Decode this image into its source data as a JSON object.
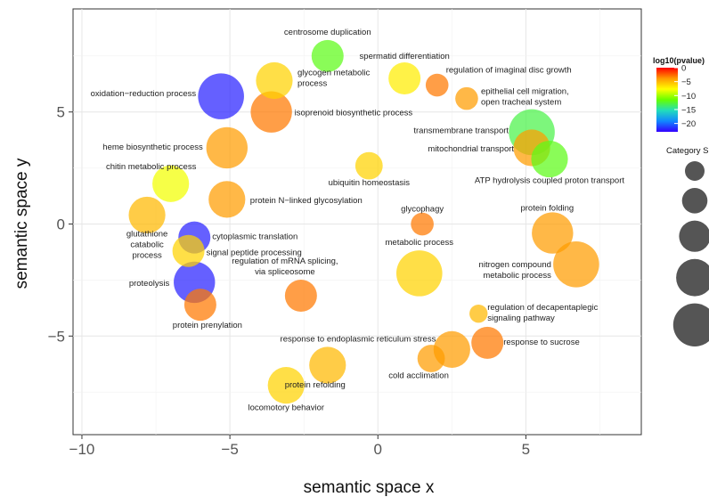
{
  "chart_data": {
    "type": "scatter",
    "xlabel": "semantic space x",
    "ylabel": "semantic space y",
    "xlim": [
      -10.3,
      8.9
    ],
    "ylim": [
      -9.4,
      9.6
    ],
    "x_ticks": [
      -10,
      -5,
      0,
      5
    ],
    "x_tick_labels": [
      "−10",
      "−5",
      "0",
      "5"
    ],
    "y_ticks": [
      -5,
      0,
      5
    ],
    "y_tick_labels": [
      "−5",
      "0",
      "5"
    ],
    "grid": true,
    "color_legend": {
      "title": "log10(pvalue)",
      "range": [
        -23,
        0
      ],
      "ticks": [
        0,
        -5,
        -10,
        -15,
        -20
      ],
      "tick_labels": [
        "0",
        "−5",
        "−10",
        "−15",
        "−20"
      ],
      "colors": [
        "#ff0000",
        "#ff9900",
        "#ffff00",
        "#66ff00",
        "#22ddbb",
        "#1188ff",
        "#3300ff"
      ]
    },
    "size_legend": {
      "title": "Category S",
      "count": 5,
      "position": "right"
    },
    "points": [
      {
        "term": "centrosome duplication",
        "x": -1.7,
        "y": 7.5,
        "size": 2.5,
        "log10p": -12
      },
      {
        "term": "spermatid differentiation",
        "x": 0.9,
        "y": 6.5,
        "size": 2.5,
        "log10p": -7
      },
      {
        "term": "regulation of imaginal disc growth",
        "x": 2.0,
        "y": 6.2,
        "size": 1.5,
        "log10p": -3
      },
      {
        "term": "glycogen metabolic\nprocess",
        "x": -3.5,
        "y": 6.4,
        "size": 3,
        "log10p": -6
      },
      {
        "term": "oxidation−reduction process",
        "x": -5.3,
        "y": 5.7,
        "size": 4,
        "log10p": -22
      },
      {
        "term": "isoprenoid biosynthetic process",
        "x": -3.6,
        "y": 5.0,
        "size": 3.5,
        "log10p": -3
      },
      {
        "term": "epithelial cell migration,\nopen tracheal system",
        "x": 3.0,
        "y": 5.6,
        "size": 1.5,
        "log10p": -4
      },
      {
        "term": "transmembrane transport",
        "x": 5.2,
        "y": 4.1,
        "size": 4,
        "log10p": -13
      },
      {
        "term": "mitochondrial transport",
        "x": 5.2,
        "y": 3.4,
        "size": 3,
        "log10p": -4
      },
      {
        "term": "ATP hydrolysis coupled proton transport",
        "x": 5.8,
        "y": 2.9,
        "size": 3,
        "log10p": -12
      },
      {
        "term": "heme biosynthetic process",
        "x": -5.1,
        "y": 3.4,
        "size": 3.5,
        "log10p": -4
      },
      {
        "term": "chitin metabolic process",
        "x": -7.0,
        "y": 1.8,
        "size": 3,
        "log10p": -8
      },
      {
        "term": "ubiquitin homeostasis",
        "x": -0.3,
        "y": 2.6,
        "size": 2,
        "log10p": -6
      },
      {
        "term": "protein N−linked glycosylation",
        "x": -5.1,
        "y": 1.1,
        "size": 3,
        "log10p": -4
      },
      {
        "term": "glutathione\ncatabolic\nprocess",
        "x": -7.8,
        "y": 0.4,
        "size": 3,
        "log10p": -5
      },
      {
        "term": "glycophagy",
        "x": 1.5,
        "y": 0.0,
        "size": 1.5,
        "log10p": -3
      },
      {
        "term": "protein folding",
        "x": 5.9,
        "y": -0.4,
        "size": 3.5,
        "log10p": -4
      },
      {
        "term": "cytoplasmic translation",
        "x": -6.2,
        "y": -0.6,
        "size": 2.5,
        "log10p": -22
      },
      {
        "term": "signal peptide processing",
        "x": -6.4,
        "y": -1.2,
        "size": 2.5,
        "log10p": -6
      },
      {
        "term": "metabolic process",
        "x": 1.4,
        "y": -2.2,
        "size": 4,
        "log10p": -6
      },
      {
        "term": "nitrogen compound\nmetabolic process",
        "x": 6.7,
        "y": -1.8,
        "size": 4,
        "log10p": -4
      },
      {
        "term": "regulation of mRNA splicing,\nvia spliceosome",
        "x": -2.6,
        "y": -3.2,
        "size": 2.5,
        "log10p": -3
      },
      {
        "term": "proteolysis",
        "x": -6.2,
        "y": -2.6,
        "size": 3.5,
        "log10p": -22
      },
      {
        "term": "protein prenylation",
        "x": -6.0,
        "y": -3.6,
        "size": 2.5,
        "log10p": -3
      },
      {
        "term": "regulation of decapentaplegic\nsignaling pathway",
        "x": 3.4,
        "y": -4.0,
        "size": 1,
        "log10p": -5
      },
      {
        "term": "response to sucrose",
        "x": 3.7,
        "y": -5.3,
        "size": 2.5,
        "log10p": -3
      },
      {
        "term": "response to endoplasmic reticulum stress",
        "x": 2.5,
        "y": -5.6,
        "size": 3,
        "log10p": -4
      },
      {
        "term": "cold acclimation",
        "x": 1.8,
        "y": -6.0,
        "size": 2,
        "log10p": -4
      },
      {
        "term": "protein refolding",
        "x": -1.7,
        "y": -6.3,
        "size": 3,
        "log10p": -5
      },
      {
        "term": "locomotory behavior",
        "x": -3.1,
        "y": -7.2,
        "size": 3,
        "log10p": -6
      }
    ]
  }
}
